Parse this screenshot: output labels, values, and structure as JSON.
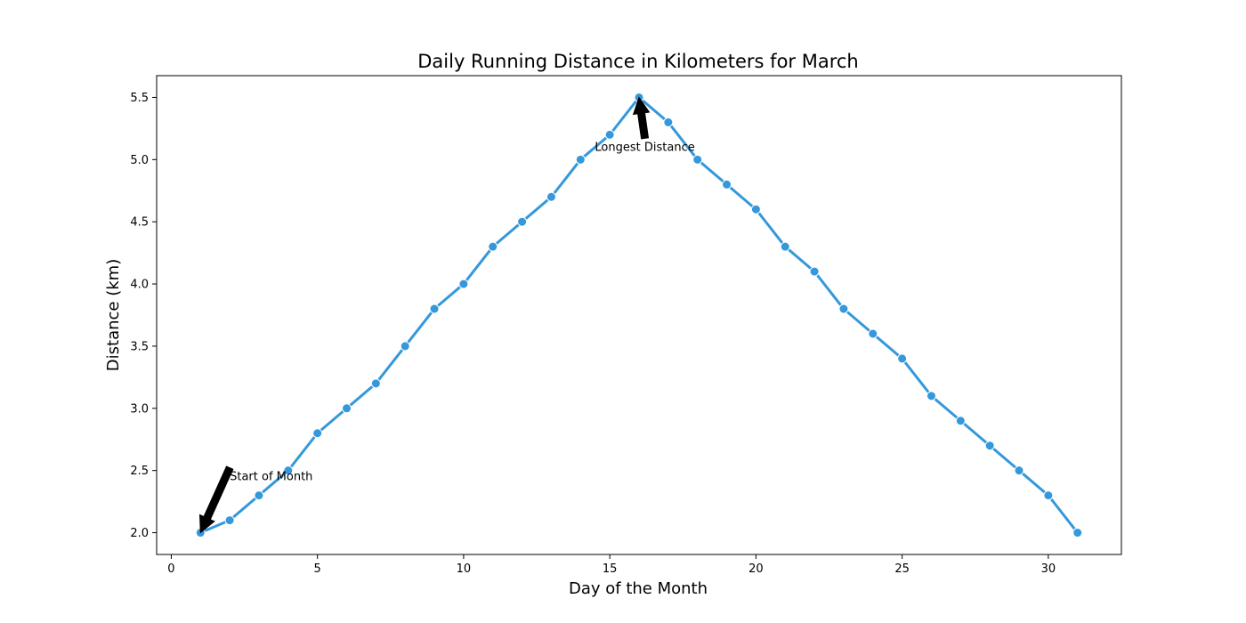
{
  "chart_data": {
    "type": "line",
    "title": "Daily Running Distance in Kilometers for March",
    "xlabel": "Day of the Month",
    "ylabel": "Distance (km)",
    "xlim": [
      -0.5,
      32.5
    ],
    "ylim": [
      1.825,
      5.675
    ],
    "xticks": [
      0,
      5,
      10,
      15,
      20,
      25,
      30
    ],
    "yticks": [
      "2.0",
      "2.5",
      "3.0",
      "3.5",
      "4.0",
      "4.5",
      "5.0",
      "5.5"
    ],
    "grid": false,
    "line_color": "#3498db",
    "x": [
      1,
      2,
      3,
      4,
      5,
      6,
      7,
      8,
      9,
      10,
      11,
      12,
      13,
      14,
      15,
      16,
      17,
      18,
      19,
      20,
      21,
      22,
      23,
      24,
      25,
      26,
      27,
      28,
      29,
      30,
      31
    ],
    "y": [
      2.0,
      2.1,
      2.3,
      2.5,
      2.8,
      3.0,
      3.2,
      3.5,
      3.8,
      4.0,
      4.3,
      4.5,
      4.7,
      5.0,
      5.2,
      5.5,
      5.3,
      5.0,
      4.8,
      4.6,
      4.3,
      4.1,
      3.8,
      3.6,
      3.4,
      3.1,
      2.9,
      2.7,
      2.5,
      2.3,
      2.0
    ],
    "annotations": [
      {
        "text": "Start of Month",
        "x": 1,
        "y": 2.0,
        "text_x": 2,
        "text_y": 2.45
      },
      {
        "text": "Longest Distance",
        "x": 16,
        "y": 5.5,
        "text_x": 16.2,
        "text_y": 5.1
      }
    ]
  }
}
